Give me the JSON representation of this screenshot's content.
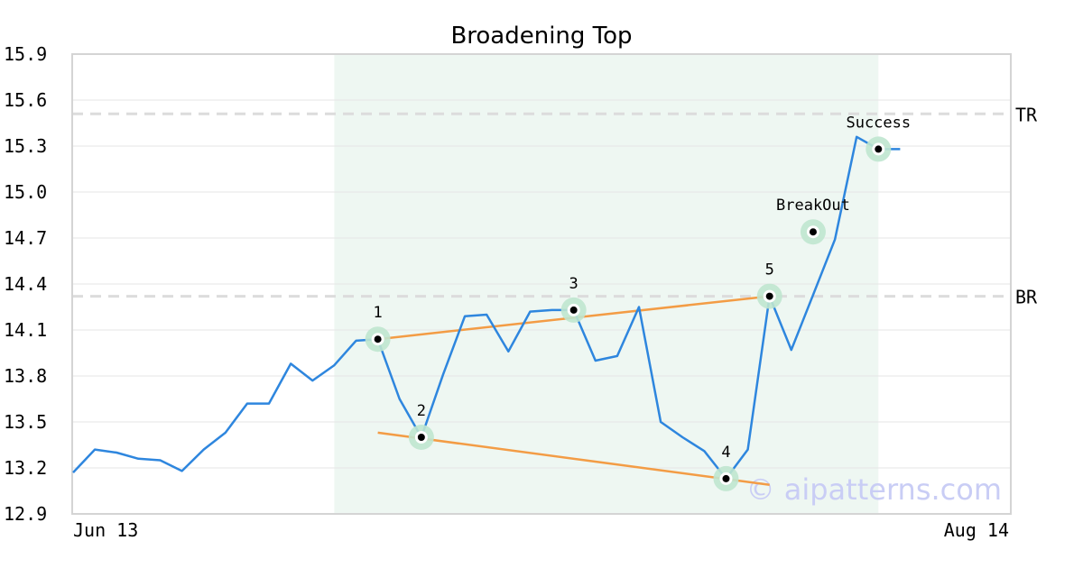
{
  "chart_data": {
    "type": "line",
    "title": "Broadening Top",
    "ylim": [
      12.9,
      15.9
    ],
    "yticks": [
      "12.9",
      "13.2",
      "13.5",
      "13.8",
      "14.1",
      "14.4",
      "14.7",
      "15.0",
      "15.3",
      "15.6",
      "15.9"
    ],
    "xlim": [
      0,
      43
    ],
    "xtick_labels": [
      {
        "label": "Jun 13",
        "x": 0
      },
      {
        "label": "Aug 14",
        "x": 43
      }
    ],
    "grid": "horizontal",
    "pattern_region": {
      "x_start": 12,
      "x_end": 37,
      "color": "#eef7f2"
    },
    "series": [
      {
        "color": "#2e86de",
        "x": [
          0,
          1,
          2,
          3,
          4,
          5,
          6,
          7,
          8,
          9,
          10,
          11,
          12,
          13,
          14,
          15,
          16,
          17,
          18,
          19,
          20,
          21,
          22,
          23,
          24,
          25,
          26,
          27,
          28,
          29,
          30,
          31,
          32,
          33,
          34,
          35,
          36,
          37,
          38
        ],
        "y": [
          13.17,
          13.32,
          13.3,
          13.26,
          13.25,
          13.18,
          13.32,
          13.43,
          13.62,
          13.62,
          13.88,
          13.77,
          13.87,
          14.03,
          14.04,
          13.65,
          13.4,
          13.81,
          14.19,
          14.2,
          13.96,
          14.22,
          14.23,
          14.23,
          13.9,
          13.93,
          14.25,
          13.5,
          13.4,
          13.31,
          13.13,
          13.32,
          14.32,
          13.97,
          14.33,
          14.69,
          15.36,
          15.28,
          15.28
        ]
      }
    ],
    "trendlines": [
      {
        "name": "upper",
        "color": "#f39c45",
        "points": [
          [
            14,
            14.04
          ],
          [
            32,
            14.32
          ]
        ]
      },
      {
        "name": "lower",
        "color": "#f39c45",
        "points": [
          [
            14,
            13.43
          ],
          [
            32,
            13.09
          ]
        ]
      }
    ],
    "levels": [
      {
        "label": "TR",
        "y": 15.51
      },
      {
        "label": "BR",
        "y": 14.32
      }
    ],
    "markers": [
      {
        "label": "1",
        "x": 14,
        "y": 14.04
      },
      {
        "label": "2",
        "x": 16,
        "y": 13.4
      },
      {
        "label": "3",
        "x": 23,
        "y": 14.23
      },
      {
        "label": "4",
        "x": 30,
        "y": 13.13
      },
      {
        "label": "5",
        "x": 32,
        "y": 14.32
      },
      {
        "label": "BreakOut",
        "x": 34,
        "y": 14.74
      },
      {
        "label": "Success",
        "x": 37,
        "y": 15.28
      }
    ],
    "watermark": "© aipatterns.com"
  }
}
